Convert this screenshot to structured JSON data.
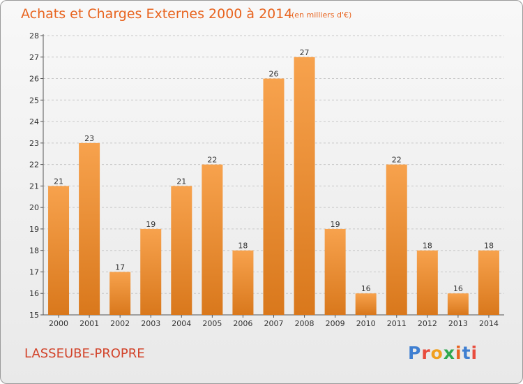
{
  "header": {
    "title": "Achats et Charges Externes 2000 à 2014",
    "subtitle": "(en milliers d'€)"
  },
  "footer": {
    "commune": "LASSEUBE-PROPRE",
    "logo_text": "Proxiti"
  },
  "colors": {
    "accent": "#e8641f",
    "bar_top": "#f7a24d",
    "bar_bottom": "#d9781c",
    "commune_text": "#d2432a",
    "logo_letters": [
      "#3f7fd1",
      "#e84c3d",
      "#f0a020",
      "#2fa84f",
      "#e8641f",
      "#3f7fd1",
      "#e84c3d"
    ]
  },
  "chart_data": {
    "type": "bar",
    "title": "Achats et Charges Externes 2000 à 2014",
    "subtitle": "(en milliers d'€)",
    "xlabel": "",
    "ylabel": "",
    "categories": [
      "2000",
      "2001",
      "2002",
      "2003",
      "2004",
      "2005",
      "2006",
      "2007",
      "2008",
      "2009",
      "2010",
      "2011",
      "2012",
      "2013",
      "2014"
    ],
    "values": [
      21,
      23,
      17,
      19,
      21,
      22,
      18,
      26,
      27,
      19,
      16,
      22,
      18,
      16,
      18
    ],
    "ylim": [
      15,
      28
    ],
    "yticks": [
      15,
      16,
      17,
      18,
      19,
      20,
      21,
      22,
      23,
      24,
      25,
      26,
      27,
      28
    ],
    "grid": "horizontal dashed",
    "legend": "none"
  }
}
